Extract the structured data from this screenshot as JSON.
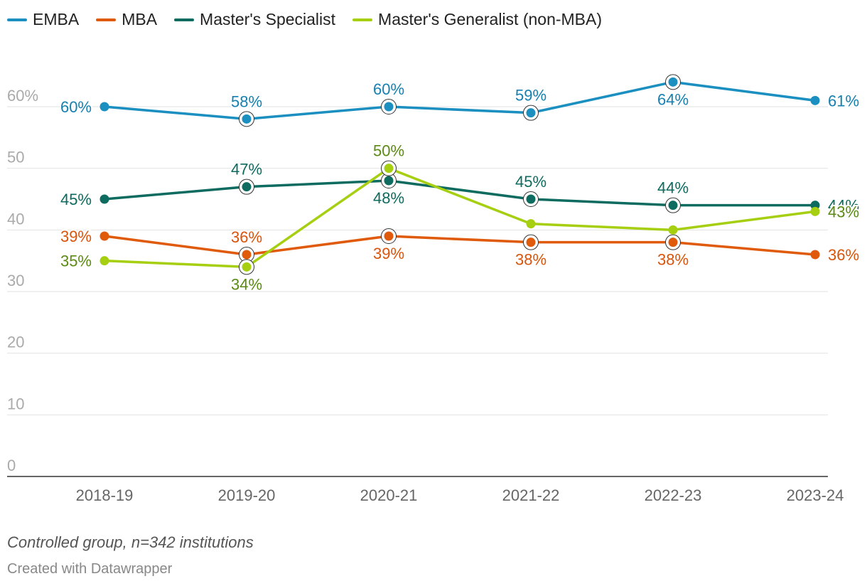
{
  "chart_data": {
    "type": "line",
    "categories": [
      "2018-19",
      "2019-20",
      "2020-21",
      "2021-22",
      "2022-23",
      "2023-24"
    ],
    "ylim": [
      0,
      60
    ],
    "yticks": [
      0,
      10,
      20,
      30,
      40,
      50,
      60
    ],
    "ytick_labels": [
      "0",
      "10",
      "20",
      "30",
      "40",
      "50",
      "60%"
    ],
    "grid": true,
    "legend_position": "top-left",
    "series": [
      {
        "name": "EMBA",
        "color": "#1a8fc0",
        "label_color": "#1580b0",
        "values": [
          60,
          58,
          60,
          59,
          64,
          61
        ],
        "labels": [
          "60%",
          "58%",
          "60%",
          "59%",
          "64%",
          "61%"
        ],
        "label_pos": [
          "left",
          "above",
          "above",
          "above",
          "below",
          "right"
        ],
        "ring": [
          false,
          true,
          true,
          true,
          true,
          false
        ]
      },
      {
        "name": "MBA",
        "color": "#e05a0c",
        "label_color": "#d9540a",
        "values": [
          39,
          36,
          39,
          38,
          38,
          36
        ],
        "labels": [
          "39%",
          "36%",
          "39%",
          "38%",
          "38%",
          "36%"
        ],
        "label_pos": [
          "left",
          "above",
          "below",
          "below",
          "below",
          "right"
        ],
        "ring": [
          false,
          true,
          true,
          true,
          true,
          false
        ]
      },
      {
        "name": "Master's Specialist",
        "color": "#0e6b5f",
        "label_color": "#0e6b5f",
        "values": [
          45,
          47,
          48,
          45,
          44,
          44
        ],
        "labels": [
          "45%",
          "47%",
          "48%",
          "45%",
          "44%",
          "44%"
        ],
        "label_pos": [
          "left",
          "above",
          "below",
          "above",
          "above",
          "right"
        ],
        "ring": [
          false,
          true,
          true,
          true,
          true,
          false
        ]
      },
      {
        "name": "Master's Generalist (non-MBA)",
        "color": "#a6cf12",
        "label_color": "#5b8a12",
        "values": [
          35,
          34,
          50,
          41,
          40,
          43
        ],
        "labels": [
          "35%",
          "34%",
          "50%",
          "",
          "",
          "43%"
        ],
        "label_pos": [
          "left",
          "below",
          "above",
          "none",
          "none",
          "right"
        ],
        "ring": [
          false,
          true,
          true,
          false,
          false,
          false
        ]
      }
    ]
  },
  "note": "Controlled group, n=342 institutions",
  "credit": "Created with Datawrapper"
}
